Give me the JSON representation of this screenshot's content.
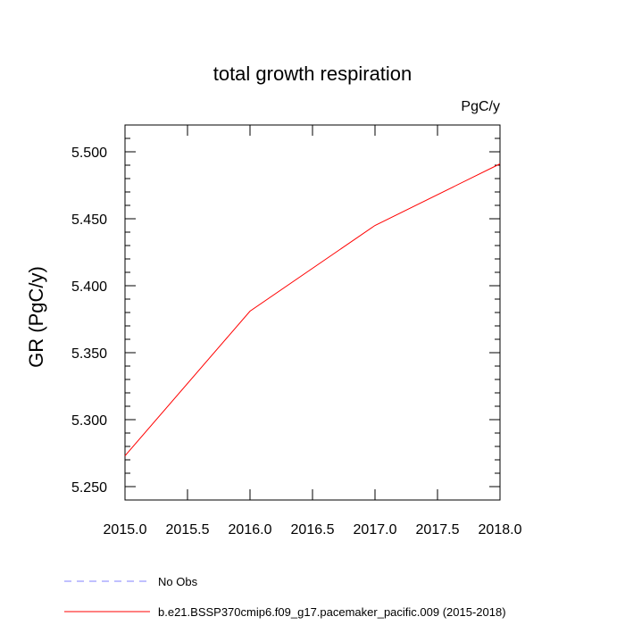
{
  "chart_data": {
    "type": "line",
    "title": "total growth respiration",
    "units": "PgC/y",
    "xlabel": "",
    "ylabel": "GR  (PgC/y)",
    "xlim": [
      2015.0,
      2018.0
    ],
    "ylim": [
      5.24,
      5.52
    ],
    "x_ticks": [
      2015.0,
      2015.5,
      2016.0,
      2016.5,
      2017.0,
      2017.5,
      2018.0
    ],
    "x_tick_labels": [
      "2015.0",
      "2015.5",
      "2016.0",
      "2016.5",
      "2017.0",
      "2017.5",
      "2018.0"
    ],
    "y_ticks": [
      5.25,
      5.3,
      5.35,
      5.4,
      5.45,
      5.5
    ],
    "y_tick_labels": [
      "5.250",
      "5.300",
      "5.350",
      "5.400",
      "5.450",
      "5.500"
    ],
    "grid": false,
    "legend_position": "bottom-left",
    "series": [
      {
        "name": "b.e21.BSSP370cmip6.f09_g17.pacemaker_pacific.009 (2015-2018)",
        "color": "#ff0000",
        "style": "solid",
        "x": [
          2015.0,
          2016.0,
          2017.0,
          2018.0
        ],
        "values": [
          5.273,
          5.381,
          5.445,
          5.491
        ]
      }
    ],
    "legend": [
      {
        "label": "No Obs",
        "color": "#8080ff",
        "style": "dashed"
      },
      {
        "label": "b.e21.BSSP370cmip6.f09_g17.pacemaker_pacific.009 (2015-2018)",
        "color": "#ff0000",
        "style": "solid"
      }
    ]
  }
}
